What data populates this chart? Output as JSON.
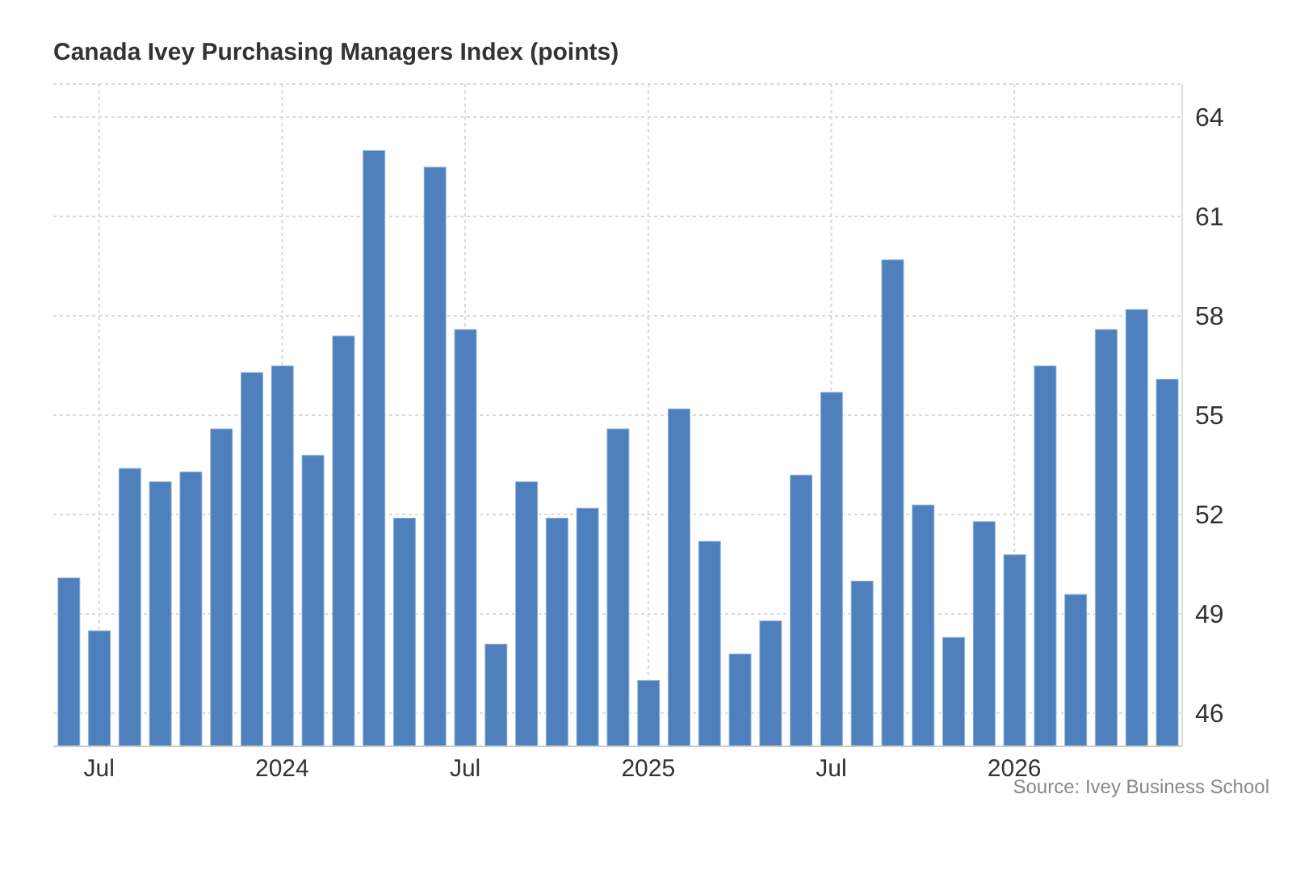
{
  "chart_data": {
    "type": "bar",
    "title": "Canada Ivey Purchasing Managers Index (points)",
    "categories": [
      null,
      "Jul",
      null,
      null,
      null,
      null,
      null,
      "2024",
      null,
      null,
      null,
      null,
      null,
      "Jul",
      null,
      null,
      null,
      null,
      null,
      "2025",
      null,
      null,
      null,
      null,
      null,
      "Jul",
      null,
      null,
      null,
      null,
      null,
      "2026",
      null,
      null,
      null,
      null,
      null
    ],
    "values": [
      50.1,
      48.5,
      53.4,
      53.0,
      53.3,
      54.6,
      56.3,
      56.5,
      53.8,
      57.4,
      63.0,
      51.9,
      62.5,
      57.6,
      48.1,
      53.0,
      51.9,
      52.2,
      54.6,
      47.0,
      55.2,
      51.2,
      47.8,
      48.8,
      53.2,
      55.7,
      50.0,
      59.7,
      52.3,
      48.3,
      51.8,
      50.8,
      56.5,
      49.6,
      57.6,
      58.2,
      56.1
    ],
    "color": "#4e80bd",
    "ylim": [
      45,
      65
    ],
    "yticks": [
      46,
      49,
      52,
      55,
      58,
      61,
      64
    ],
    "grid": true,
    "annotations": [
      "Source: Ivey Business School"
    ]
  }
}
